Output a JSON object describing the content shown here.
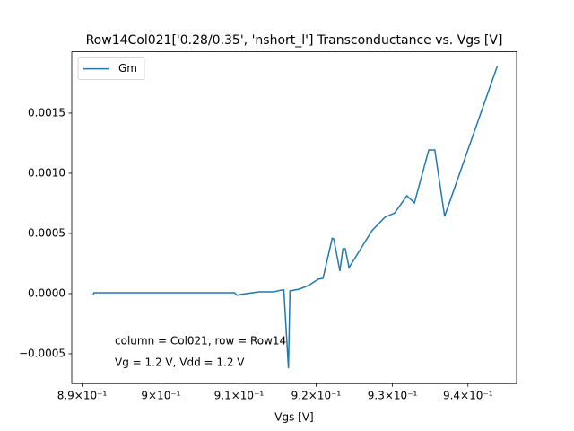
{
  "chart_data": {
    "type": "line",
    "title": "Row14Col021['0.28/0.35', 'nshort_l'] Transconductance vs. Vgs [V]",
    "x_label": "Vgs [V]",
    "x_scale": "log",
    "legend_position": "upper left",
    "annotations": [
      "column = Col021, row = Row14",
      "Vg = 1.2 V, Vdd = 1.2 V"
    ],
    "xlim": [
      0.8887,
      0.9465
    ],
    "xticks": [
      {
        "value": 0.89,
        "label": "8.9×10⁻¹"
      },
      {
        "value": 0.9,
        "label": "9×10⁻¹"
      },
      {
        "value": 0.91,
        "label": "9.1×10⁻¹"
      },
      {
        "value": 0.92,
        "label": "9.2×10⁻¹"
      },
      {
        "value": 0.93,
        "label": "9.3×10⁻¹"
      },
      {
        "value": 0.94,
        "label": "9.4×10⁻¹"
      }
    ],
    "ylim": [
      -0.000748,
      0.00201
    ],
    "yticks": [
      {
        "value": -0.0005,
        "label": "−0.0005"
      },
      {
        "value": 0,
        "label": "0.0000"
      },
      0.0005,
      {
        "value": 0.001,
        "label": "0.0010"
      },
      0.0015
    ],
    "series": [
      {
        "name": "Gm",
        "color": "#1f77b4",
        "x": [
          0.8914,
          0.8915,
          0.9094,
          0.9098,
          0.9102,
          0.9126,
          0.9145,
          0.9155,
          0.9158,
          0.9164,
          0.9166,
          0.9178,
          0.919,
          0.9203,
          0.9209,
          0.9221,
          0.9223,
          0.9231,
          0.9235,
          0.9238,
          0.9243,
          0.9273,
          0.929,
          0.9303,
          0.9319,
          0.9329,
          0.9348,
          0.9356,
          0.9369,
          0.9439
        ],
        "values": [
          -7e-06,
          7e-06,
          7e-06,
          -1.5e-05,
          -7e-06,
          1.5e-05,
          1.5e-05,
          3e-05,
          3e-05,
          -0.00062,
          2.2e-05,
          3.7e-05,
          6.7e-05,
          0.00012,
          0.000127,
          0.00046,
          0.000455,
          0.000187,
          0.000373,
          0.000373,
          0.000216,
          0.000522,
          0.000634,
          0.00067,
          0.000813,
          0.000754,
          0.001194,
          0.001194,
          0.000642,
          0.001888
        ]
      }
    ]
  }
}
